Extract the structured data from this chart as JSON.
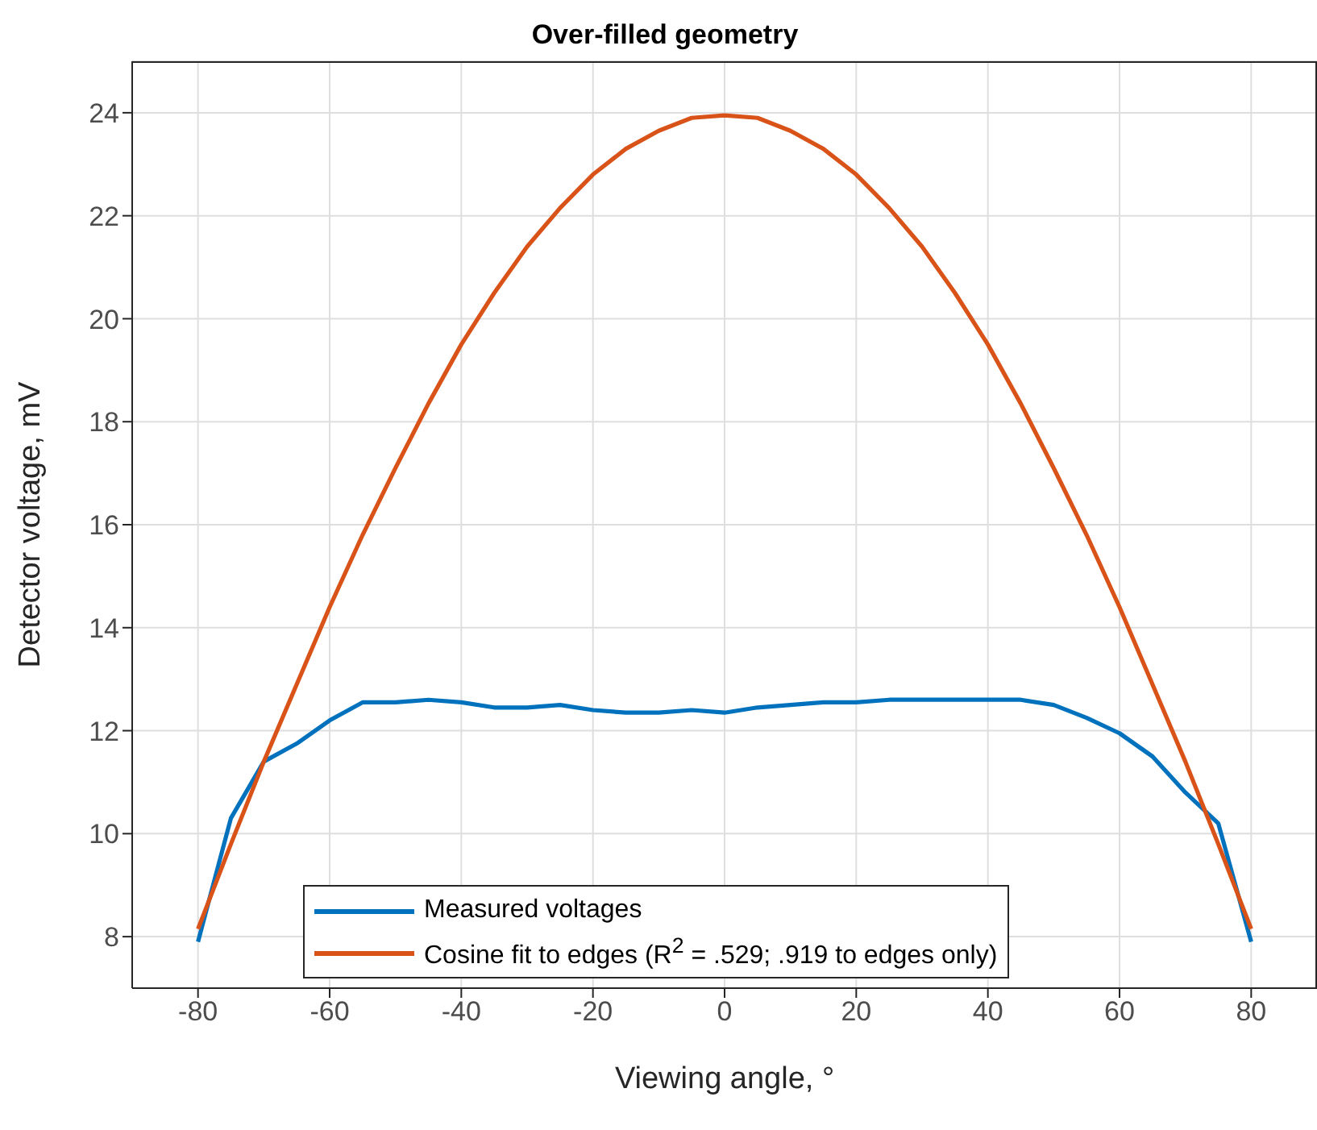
{
  "chart_data": {
    "type": "line",
    "title": "Over-filled geometry",
    "xlabel": "Viewing angle, °",
    "ylabel": "Detector voltage, mV",
    "xlim": [
      -90,
      90
    ],
    "xticks": [
      -80,
      -60,
      -40,
      -20,
      0,
      20,
      40,
      60,
      80
    ],
    "ylim": [
      7,
      25
    ],
    "yticks": [
      8,
      10,
      12,
      14,
      16,
      18,
      20,
      22,
      24
    ],
    "grid": true,
    "legend": "bottom",
    "marker": "none",
    "line_style": "solid",
    "series": [
      {
        "name": "Measured voltages",
        "color": "#0072bd",
        "x": [
          -80,
          -75,
          -70,
          -65,
          -60,
          -55,
          -50,
          -45,
          -40,
          -35,
          -30,
          -25,
          -20,
          -15,
          -10,
          -5,
          0,
          5,
          10,
          15,
          20,
          25,
          30,
          35,
          40,
          45,
          50,
          55,
          60,
          65,
          70,
          75,
          80
        ],
        "values": [
          7.9,
          10.3,
          11.4,
          11.75,
          12.2,
          12.55,
          12.55,
          12.6,
          12.55,
          12.45,
          12.45,
          12.5,
          12.4,
          12.35,
          12.35,
          12.4,
          12.35,
          12.45,
          12.5,
          12.55,
          12.55,
          12.6,
          12.6,
          12.6,
          12.6,
          12.6,
          12.5,
          12.25,
          11.95,
          11.5,
          10.8,
          10.2,
          7.9
        ]
      },
      {
        "name": "Cosine fit to edges (R$^{2}$ = .529; .919 to edges only)",
        "color": "#d95319",
        "x": [
          -80,
          -75,
          -70,
          -65,
          -60,
          -55,
          -50,
          -45,
          -40,
          -35,
          -30,
          -25,
          -20,
          -15,
          -10,
          -5,
          0,
          5,
          10,
          15,
          20,
          25,
          30,
          35,
          40,
          45,
          50,
          55,
          60,
          65,
          70,
          75,
          80
        ],
        "values": [
          8.15,
          9.8,
          11.4,
          12.9,
          14.4,
          15.8,
          17.1,
          18.35,
          19.5,
          20.5,
          21.4,
          22.15,
          22.8,
          23.3,
          23.65,
          23.9,
          23.95,
          23.9,
          23.65,
          23.3,
          22.8,
          22.15,
          21.4,
          20.5,
          19.5,
          18.35,
          17.1,
          15.8,
          14.4,
          12.9,
          11.4,
          9.8,
          8.15
        ]
      }
    ]
  }
}
